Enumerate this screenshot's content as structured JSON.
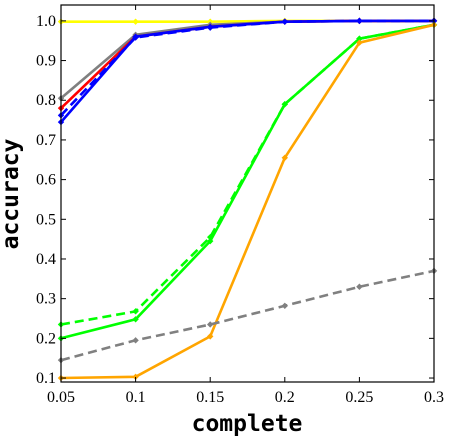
{
  "chart_data": {
    "type": "line",
    "xlabel": "complete",
    "ylabel": "accuracy",
    "xlim": [
      0.05,
      0.3
    ],
    "ylim": [
      0.09,
      1.04
    ],
    "x_ticks": [
      "0.05",
      "0.1",
      "0.15",
      "0.2",
      "0.25",
      "0.3"
    ],
    "y_ticks": [
      "0.1",
      "0.2",
      "0.3",
      "0.4",
      "0.5",
      "0.6",
      "0.7",
      "0.8",
      "0.9",
      "1.0"
    ],
    "grid": false,
    "legend": false,
    "series": [
      {
        "color": "#ffff00",
        "style": "solid",
        "x": [
          0.05,
          0.1,
          0.15,
          0.2,
          0.25,
          0.3
        ],
        "values": [
          0.998,
          0.998,
          0.998,
          1.0,
          1.0,
          1.0
        ]
      },
      {
        "color": "#808080",
        "style": "solid",
        "x": [
          0.05,
          0.1,
          0.15,
          0.2,
          0.25,
          0.3
        ],
        "values": [
          0.805,
          0.965,
          0.99,
          0.998,
          1.0,
          1.0
        ]
      },
      {
        "color": "#ff0000",
        "style": "solid",
        "x": [
          0.05,
          0.1,
          0.15,
          0.2,
          0.25,
          0.3
        ],
        "values": [
          0.78,
          0.96,
          0.985,
          0.998,
          1.0,
          1.0
        ]
      },
      {
        "color": "#0000ff",
        "style": "dashed",
        "x": [
          0.05,
          0.1,
          0.15,
          0.2,
          0.25,
          0.3
        ],
        "values": [
          0.762,
          0.958,
          0.983,
          0.998,
          1.0,
          1.0
        ]
      },
      {
        "color": "#0000ff",
        "style": "solid",
        "x": [
          0.05,
          0.1,
          0.15,
          0.2,
          0.25,
          0.3
        ],
        "values": [
          0.745,
          0.96,
          0.985,
          0.998,
          1.0,
          1.0
        ]
      },
      {
        "color": "#00ff00",
        "style": "dashed",
        "x": [
          0.05,
          0.1,
          0.15,
          0.2,
          0.25,
          0.3
        ],
        "values": [
          0.235,
          0.268,
          0.455,
          0.79,
          0.955,
          0.99
        ]
      },
      {
        "color": "#00ff00",
        "style": "solid",
        "x": [
          0.05,
          0.1,
          0.15,
          0.2,
          0.25,
          0.3
        ],
        "values": [
          0.2,
          0.248,
          0.445,
          0.79,
          0.955,
          0.99
        ]
      },
      {
        "color": "#ffa500",
        "style": "solid",
        "x": [
          0.05,
          0.1,
          0.15,
          0.2,
          0.25,
          0.3
        ],
        "values": [
          0.1,
          0.103,
          0.205,
          0.655,
          0.945,
          0.99
        ]
      },
      {
        "color": "#808080",
        "style": "dashed",
        "x": [
          0.05,
          0.1,
          0.15,
          0.2,
          0.25,
          0.3
        ],
        "values": [
          0.145,
          0.195,
          0.235,
          0.282,
          0.33,
          0.37
        ]
      }
    ]
  }
}
